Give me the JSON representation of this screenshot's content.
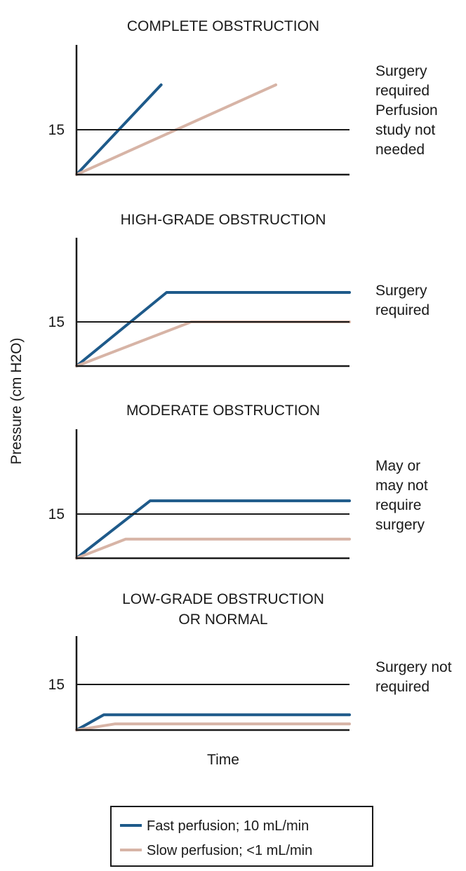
{
  "chart_data": {
    "type": "line",
    "ylabel": "Pressure (cm H2O)",
    "xlabel": "Time",
    "threshold": 15,
    "ylim": [
      0,
      30
    ],
    "xlim": [
      0,
      10
    ],
    "colors": {
      "fast": "#1e5a8a",
      "slow": "#d7b4a6",
      "axis": "#1a1a1a"
    },
    "legend": {
      "position": "bottom-center",
      "entries": [
        {
          "key": "fast",
          "label": "Fast perfusion; 10 mL/min"
        },
        {
          "key": "slow",
          "label": "Slow perfusion; <1 mL/min"
        }
      ]
    },
    "panels": [
      {
        "title_lines": [
          "COMPLETE OBSTRUCTION"
        ],
        "tick": "15",
        "note_lines": [
          "Surgery",
          "required",
          "Perfusion",
          "study not",
          "needed"
        ],
        "series": [
          {
            "key": "fast",
            "x": [
              0,
              3.1
            ],
            "y": [
              0,
              30
            ]
          },
          {
            "key": "slow",
            "x": [
              0,
              7.3
            ],
            "y": [
              0,
              30
            ]
          }
        ]
      },
      {
        "title_lines": [
          "HIGH-GRADE OBSTRUCTION"
        ],
        "tick": "15",
        "note_lines": [
          "Surgery",
          "required"
        ],
        "series": [
          {
            "key": "fast",
            "x": [
              0,
              3.3,
              10
            ],
            "y": [
              0,
              25,
              25
            ]
          },
          {
            "key": "slow",
            "x": [
              0,
              4.2,
              10
            ],
            "y": [
              0,
              15,
              15
            ]
          }
        ]
      },
      {
        "title_lines": [
          "MODERATE OBSTRUCTION"
        ],
        "tick": "15",
        "note_lines": [
          "May or",
          "may not",
          "require",
          "surgery"
        ],
        "series": [
          {
            "key": "fast",
            "x": [
              0,
              2.7,
              10
            ],
            "y": [
              0,
              19.5,
              19.5
            ]
          },
          {
            "key": "slow",
            "x": [
              0,
              1.8,
              10
            ],
            "y": [
              0,
              6.5,
              6.5
            ]
          }
        ]
      },
      {
        "title_lines": [
          "LOW-GRADE OBSTRUCTION",
          "OR NORMAL"
        ],
        "tick": "15",
        "note_lines": [
          "Surgery not",
          "required"
        ],
        "series": [
          {
            "key": "fast",
            "x": [
              0,
              1,
              10
            ],
            "y": [
              0,
              5,
              5
            ]
          },
          {
            "key": "slow",
            "x": [
              0,
              1.4,
              10
            ],
            "y": [
              0,
              2,
              2
            ]
          }
        ]
      }
    ]
  }
}
